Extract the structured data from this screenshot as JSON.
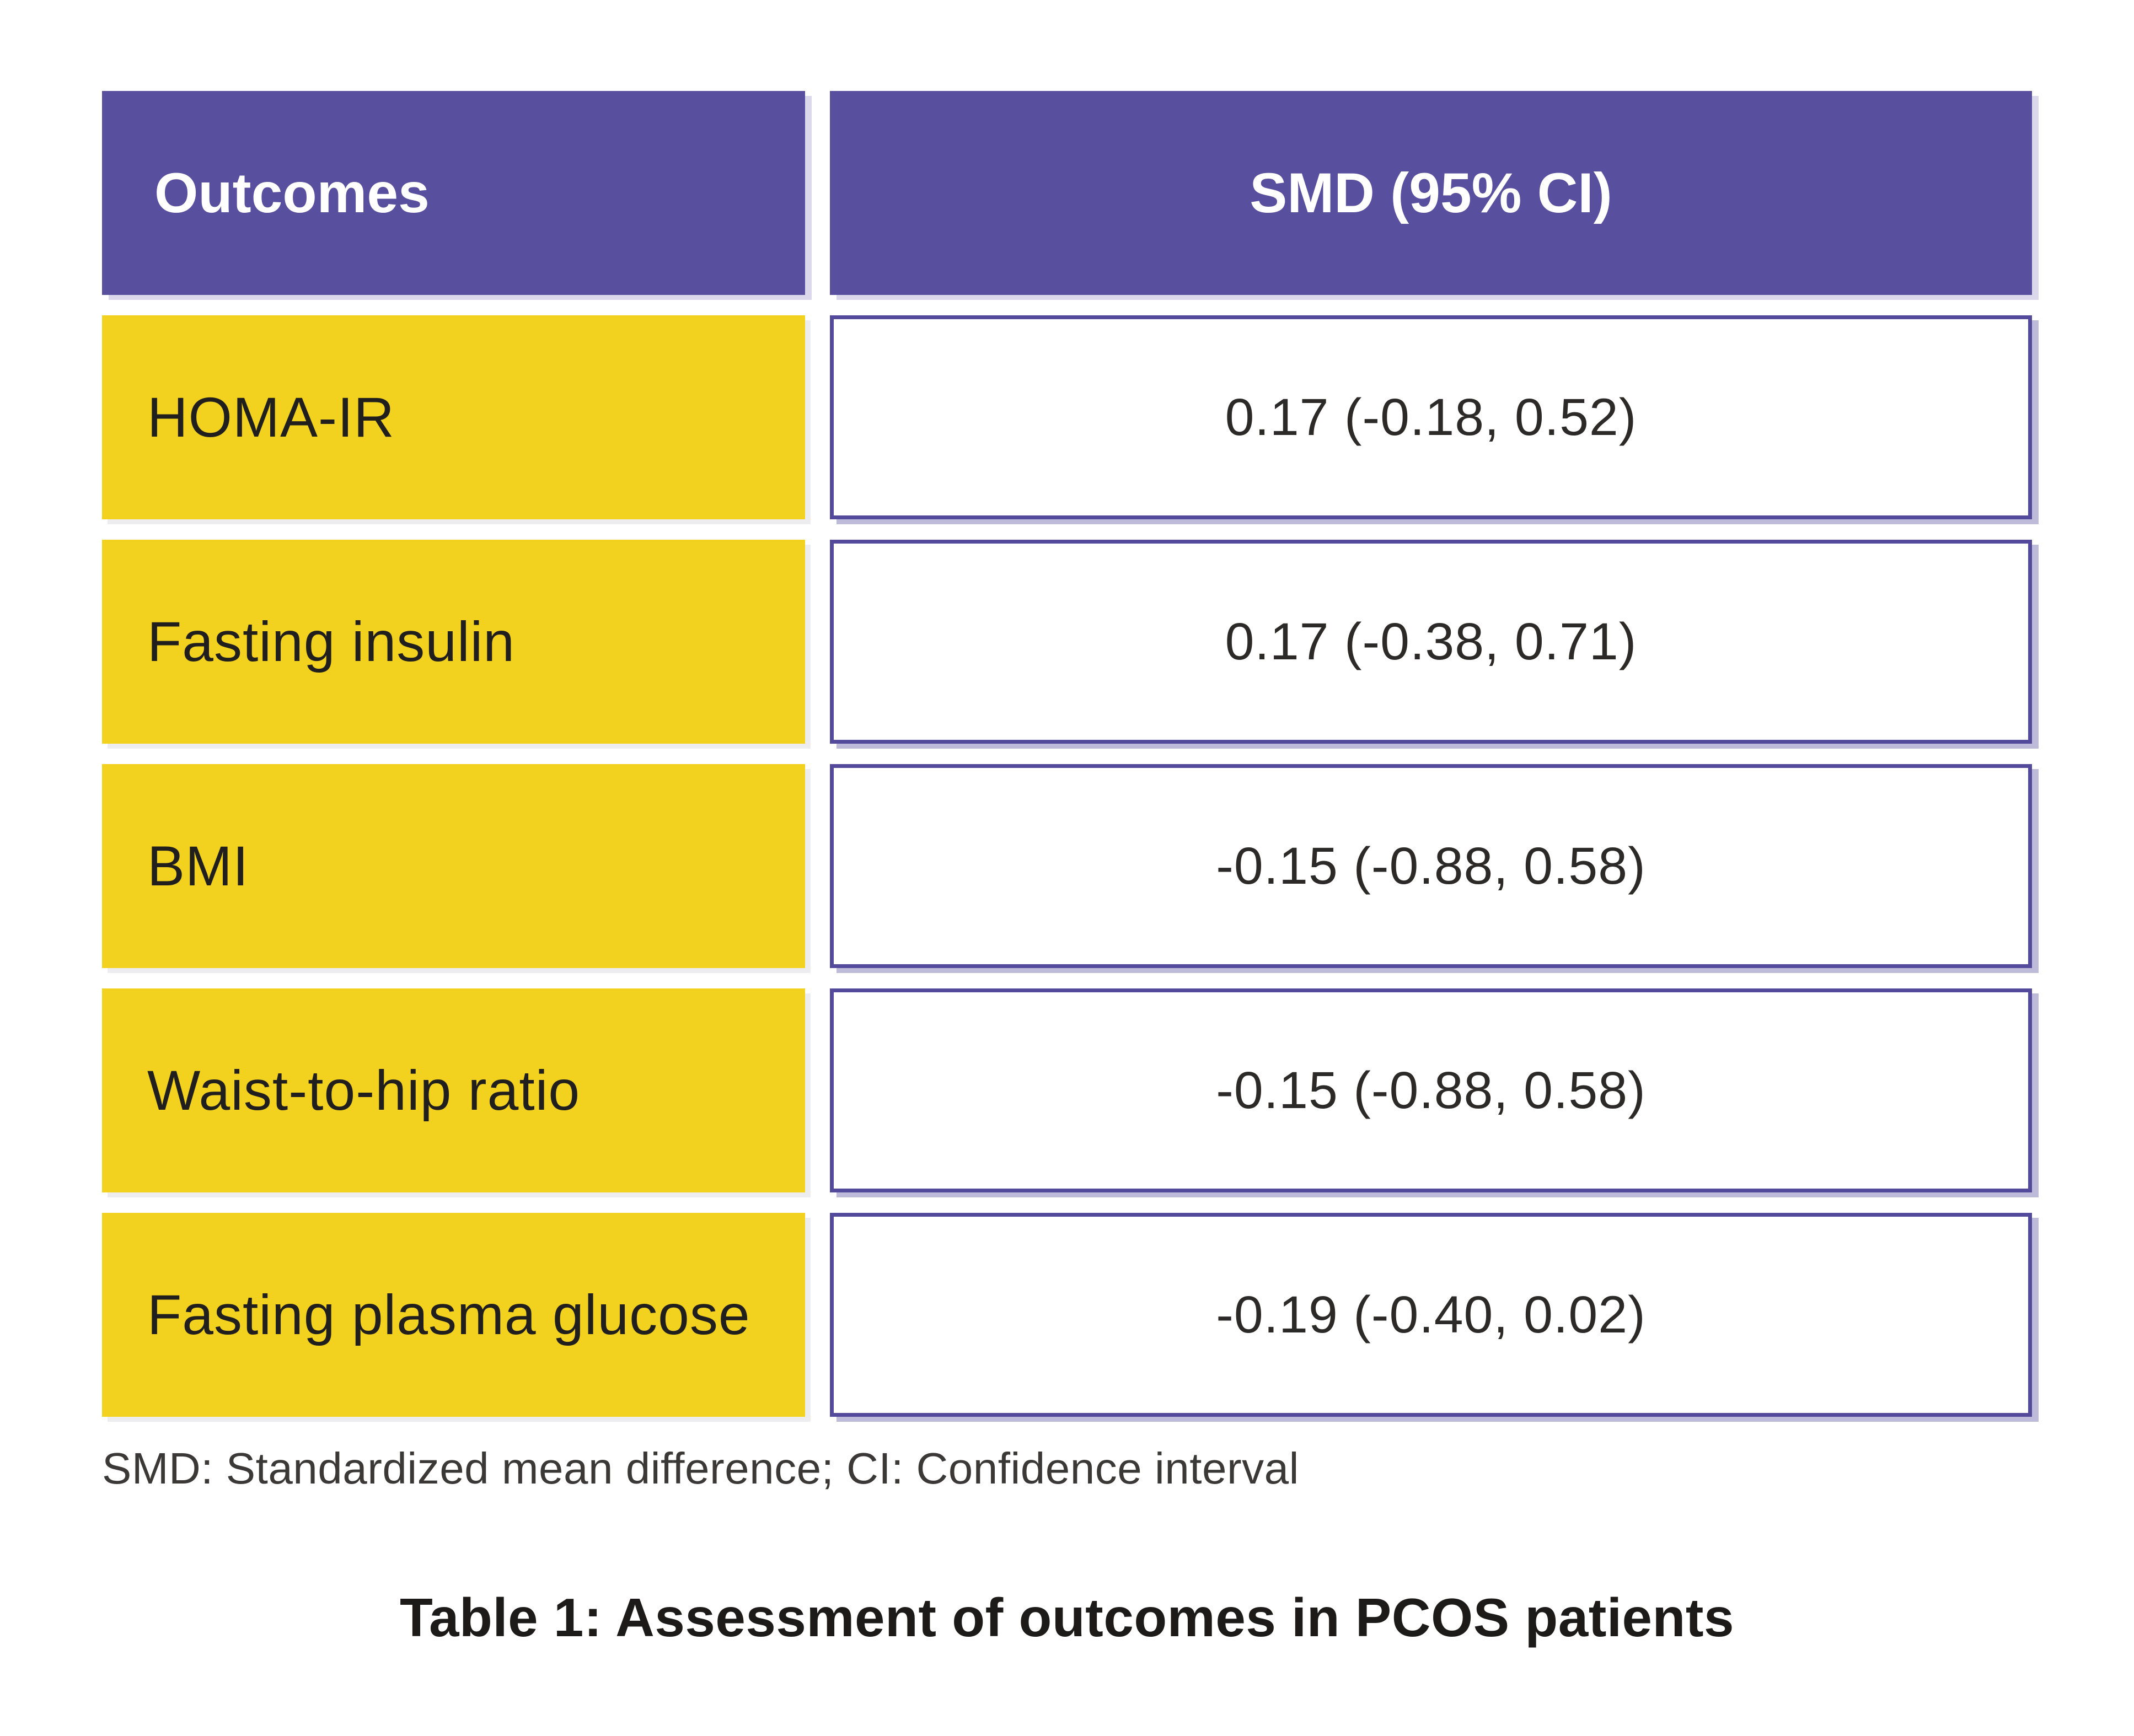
{
  "table": {
    "header": {
      "col1": "Outcomes",
      "col2": "SMD (95% CI)"
    },
    "rows": [
      {
        "outcome": "HOMA-IR",
        "smd": "0.17 (-0.18, 0.52)"
      },
      {
        "outcome": "Fasting insulin",
        "smd": "0.17 (-0.38, 0.71)"
      },
      {
        "outcome": "BMI",
        "smd": "-0.15 (-0.88, 0.58)"
      },
      {
        "outcome": "Waist-to-hip ratio",
        "smd": "-0.15 (-0.88, 0.58)"
      },
      {
        "outcome": "Fasting plasma glucose",
        "smd": "-0.19 (-0.40, 0.02)"
      }
    ],
    "footnote": "SMD: Standardized mean difference; CI: Confidence interval",
    "caption": "Table 1: Assessment of outcomes in PCOS patients"
  },
  "colors": {
    "header_bg": "#584f9e",
    "header_text": "#ffffff",
    "row_label_bg": "#f3d11f",
    "row_label_text": "#201f1d",
    "value_cell_bg": "#ffffff",
    "value_cell_border": "#544a9b",
    "value_text": "#2b2a28",
    "footnote_text": "#3a3938",
    "caption_text": "#1c1b1a",
    "page_bg": "#ffffff"
  }
}
